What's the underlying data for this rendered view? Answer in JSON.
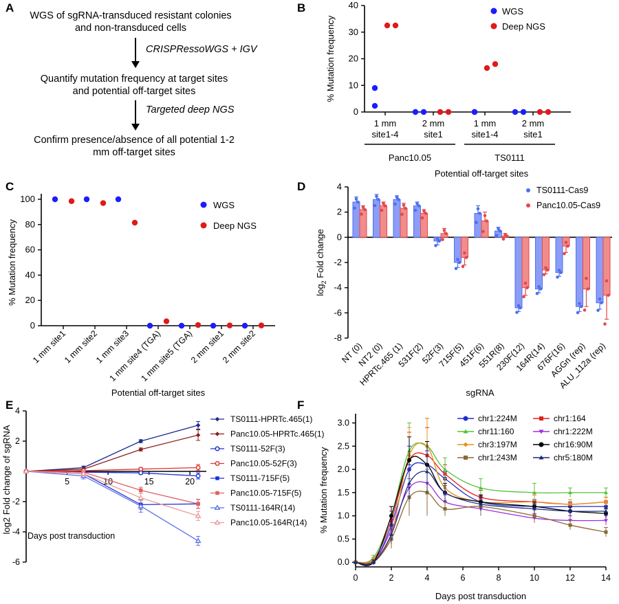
{
  "panels": {
    "A": {
      "letter": "A",
      "box1": "WGS of sgRNA-transduced resistant colonies and non-transduced cells",
      "arrow1_label": "CRISPRessoWGS + IGV",
      "box2": "Quantify mutation frequency at target sites and potential off-target sites",
      "arrow2_label": "Targeted deep NGS",
      "box3": "Confirm presence/absence of all potential 1-2 mm off-target sites"
    },
    "B": {
      "letter": "B"
    },
    "C": {
      "letter": "C"
    },
    "D": {
      "letter": "D"
    },
    "E": {
      "letter": "E"
    },
    "F": {
      "letter": "F"
    }
  },
  "chart_data": [
    {
      "id": "B",
      "type": "scatter",
      "ylabel": "% Mutation frequency",
      "xlabel": "Potential off-target sites",
      "ylim": [
        0,
        40
      ],
      "yticks": [
        0,
        10,
        20,
        30,
        40
      ],
      "categories": [
        "1 mm site1-4",
        "2 mm site1",
        "1 mm site1-4",
        "2 mm site1"
      ],
      "groups": [
        {
          "name": "Panc10.05",
          "categories": [
            0,
            1
          ]
        },
        {
          "name": "TS0111",
          "categories": [
            2,
            3
          ]
        }
      ],
      "legend_position": "top-right",
      "series": [
        {
          "name": "WGS",
          "color": "#1c1cff",
          "points": [
            [
              0,
              9
            ],
            [
              0,
              2.3
            ],
            [
              1,
              0
            ],
            [
              1,
              0
            ],
            [
              2,
              0
            ],
            [
              2,
              0
            ],
            [
              3,
              0
            ],
            [
              3,
              0
            ]
          ]
        },
        {
          "name": "Deep NGS",
          "color": "#e0191b",
          "points": [
            [
              0,
              32.5
            ],
            [
              0,
              32.5
            ],
            [
              1,
              0
            ],
            [
              1,
              0
            ],
            [
              2,
              16.5
            ],
            [
              2,
              18
            ],
            [
              3,
              0
            ],
            [
              3,
              0
            ]
          ]
        }
      ]
    },
    {
      "id": "C",
      "type": "scatter",
      "ylabel": "% Mutation frequency",
      "xlabel": "Potential off-target sites",
      "ylim": [
        0,
        100
      ],
      "yticks": [
        0,
        20,
        40,
        60,
        80,
        100
      ],
      "categories": [
        "1 mm site1",
        "1 mm site2",
        "1 mm site3",
        "1 mm site4 (TGA)",
        "1 mm site5 (TGA)",
        "2 mm site1",
        "2 mm site2"
      ],
      "legend_position": "top-right",
      "series": [
        {
          "name": "WGS",
          "color": "#1c1cff",
          "values": [
            100,
            100,
            100,
            0,
            0,
            0,
            0
          ]
        },
        {
          "name": "Deep NGS",
          "color": "#e0191b",
          "values": [
            98.5,
            97,
            81.5,
            3.5,
            0.5,
            0.2,
            0.2
          ]
        }
      ]
    },
    {
      "id": "D",
      "type": "bar",
      "ylabel_main": "log",
      "ylabel_sub": "2",
      "ylabel_rest": " Fold change",
      "xlabel": "sgRNA",
      "ylim": [
        -8,
        4
      ],
      "yticks": [
        -8,
        -6,
        -4,
        -2,
        0,
        2,
        4
      ],
      "categories": [
        "NT (0)",
        "NT2 (0)",
        "HPRTc.465 (1)",
        "531F(2)",
        "52F(3)",
        "715F(5)",
        "451F(6)",
        "551R(8)",
        "230F(12)",
        "164R(14)",
        "676F(16)",
        "AGGn (rep)",
        "ALU_112a (rep)"
      ],
      "legend_position": "top-right",
      "series": [
        {
          "name": "TS0111-Cas9",
          "color": "#4f6ff0",
          "fill": "#8b9df5",
          "values": [
            2.8,
            3.0,
            3.0,
            2.5,
            -0.3,
            -2.0,
            1.9,
            0.5,
            -5.6,
            -4.1,
            -2.8,
            -5.5,
            -5.2
          ],
          "err": [
            0.4,
            0.4,
            0.3,
            0.3,
            0.3,
            0.4,
            0.6,
            0.3,
            0.3,
            0.3,
            0.3,
            0.4,
            0.5
          ]
        },
        {
          "name": "Panc10.05-Cas9",
          "color": "#e5484a",
          "fill": "#f08c8c",
          "values": [
            2.2,
            2.5,
            2.3,
            1.9,
            0.3,
            -1.6,
            1.3,
            0.1,
            -4.0,
            -2.6,
            -0.7,
            -4.1,
            -4.6
          ],
          "err": [
            0.3,
            0.3,
            0.4,
            0.3,
            0.4,
            0.6,
            0.7,
            0.2,
            0.6,
            0.3,
            0.5,
            1.4,
            1.9
          ]
        }
      ]
    },
    {
      "id": "E",
      "type": "line",
      "ylabel": "log2 Fold change of sgRNA",
      "xlabel": "Days post transduction",
      "xlim": [
        0,
        22
      ],
      "ylim": [
        -6,
        4
      ],
      "xticks": [
        5,
        10,
        15,
        20
      ],
      "yticks": [
        -6,
        -4,
        -2,
        2,
        4
      ],
      "x": [
        0,
        7,
        14,
        21
      ],
      "series": [
        {
          "name": "TS0111-HPRTc.465(1)",
          "color": "#1a2a8c",
          "marker": "diamond",
          "values": [
            0,
            0.25,
            2.0,
            3.05
          ],
          "err": [
            0,
            0.1,
            0.1,
            0.25
          ]
        },
        {
          "name": "Panc10.05-HPRTc.465(1)",
          "color": "#8c1e1e",
          "marker": "diamond",
          "values": [
            0,
            0.15,
            1.45,
            2.4
          ],
          "err": [
            0,
            0.1,
            0.1,
            0.35
          ]
        },
        {
          "name": "TS0111-52F(3)",
          "color": "#1c2fd6",
          "marker": "circle-open",
          "values": [
            0,
            -0.05,
            -0.1,
            -0.3
          ],
          "err": [
            0,
            0.1,
            0.1,
            0.2
          ]
        },
        {
          "name": "Panc10.05-52F(3)",
          "color": "#d93535",
          "marker": "circle-open",
          "values": [
            0,
            0.05,
            0.15,
            0.25
          ],
          "err": [
            0,
            0.1,
            0.1,
            0.2
          ]
        },
        {
          "name": "TS0111-715F(5)",
          "color": "#1c2fd6",
          "marker": "square",
          "values": [
            0,
            -0.15,
            -2.2,
            -2.15
          ],
          "err": [
            0,
            0.15,
            0.3,
            0.3
          ]
        },
        {
          "name": "Panc10.05-715F(5)",
          "color": "#e06060",
          "marker": "square",
          "values": [
            0,
            -0.05,
            -1.25,
            -2.15
          ],
          "err": [
            0,
            0.1,
            0.2,
            0.3
          ]
        },
        {
          "name": "TS0111-164R(14)",
          "color": "#5c70e8",
          "marker": "triangle-open",
          "values": [
            0,
            -0.3,
            -2.3,
            -4.6
          ],
          "err": [
            0,
            0.2,
            0.4,
            0.3
          ]
        },
        {
          "name": "Panc10.05-164R(14)",
          "color": "#ee9a9a",
          "marker": "triangle-open",
          "values": [
            0,
            -0.15,
            -1.75,
            -2.95
          ],
          "err": [
            0,
            0.15,
            0.3,
            0.3
          ]
        }
      ]
    },
    {
      "id": "F",
      "type": "line",
      "ylabel": "% Mutation frequency",
      "xlabel": "Days post transduction",
      "xlim": [
        0,
        14
      ],
      "ylim": [
        -0.1,
        3.2
      ],
      "xticks": [
        0,
        2,
        4,
        6,
        8,
        10,
        12,
        14
      ],
      "yticks": [
        0.0,
        0.5,
        1.0,
        1.5,
        2.0,
        2.5,
        3.0
      ],
      "x": [
        0,
        1,
        2,
        3,
        4,
        5,
        7,
        10,
        12,
        14
      ],
      "legend_position": "top-right",
      "series": [
        {
          "name": "chr1:224M",
          "color": "#1f30c9",
          "marker": "circle",
          "values": [
            0,
            0,
            0.8,
            2.0,
            2.1,
            1.8,
            1.3,
            1.2,
            1.2,
            1.2
          ],
          "err": [
            0,
            0.05,
            0.2,
            0.5,
            0.5,
            0.15,
            0.15,
            0.15,
            0.1,
            0.1
          ]
        },
        {
          "name": "chr1:164",
          "color": "#e31e1e",
          "marker": "square",
          "values": [
            0,
            0.05,
            0.9,
            2.2,
            2.3,
            1.9,
            1.4,
            1.3,
            1.25,
            1.3
          ],
          "err": [
            0,
            0.05,
            0.2,
            0.6,
            0.6,
            0.2,
            0.15,
            0.15,
            0.1,
            0.1
          ]
        },
        {
          "name": "chr11:160",
          "color": "#52c23a",
          "marker": "triangle",
          "values": [
            0,
            0.1,
            1.0,
            2.4,
            2.5,
            2.0,
            1.6,
            1.5,
            1.5,
            1.5
          ],
          "err": [
            0,
            0.05,
            0.2,
            0.6,
            0.6,
            0.25,
            0.2,
            0.2,
            0.1,
            0.1
          ]
        },
        {
          "name": "chr1:222M",
          "color": "#9b30e0",
          "marker": "triangle-down",
          "values": [
            0,
            0,
            0.7,
            1.6,
            1.7,
            1.3,
            1.15,
            0.95,
            0.9,
            0.9
          ],
          "err": [
            0,
            0.05,
            0.2,
            0.4,
            0.4,
            0.15,
            0.15,
            0.1,
            0.1,
            0.1
          ]
        },
        {
          "name": "chr3:197M",
          "color": "#e8911a",
          "marker": "diamond",
          "values": [
            0,
            0.05,
            0.6,
            2.3,
            2.5,
            1.6,
            1.3,
            1.3,
            1.25,
            1.3
          ],
          "err": [
            0,
            0.05,
            0.2,
            0.6,
            0.6,
            0.2,
            0.15,
            0.15,
            0.1,
            0.1
          ]
        },
        {
          "name": "chr16:90M",
          "color": "#000000",
          "marker": "circle",
          "values": [
            0,
            0,
            1.0,
            2.2,
            2.1,
            1.5,
            1.3,
            1.2,
            1.1,
            1.05
          ],
          "err": [
            0,
            0.05,
            0.2,
            0.5,
            0.5,
            0.2,
            0.15,
            0.1,
            0.1,
            0.1
          ]
        },
        {
          "name": "chr1:243M",
          "color": "#8c6a32",
          "marker": "square",
          "values": [
            0,
            0,
            0.5,
            1.4,
            1.5,
            1.15,
            1.2,
            1.0,
            0.8,
            0.65
          ],
          "err": [
            0,
            0.05,
            0.2,
            0.4,
            0.5,
            0.15,
            0.15,
            0.15,
            0.1,
            0.1
          ]
        },
        {
          "name": "chr5:180M",
          "color": "#1b2a7a",
          "marker": "triangle",
          "values": [
            0,
            0,
            0.6,
            1.7,
            1.95,
            1.5,
            1.25,
            1.15,
            1.1,
            1.1
          ],
          "err": [
            0,
            0.05,
            0.2,
            0.4,
            0.45,
            0.15,
            0.15,
            0.1,
            0.1,
            0.1
          ]
        }
      ]
    }
  ]
}
